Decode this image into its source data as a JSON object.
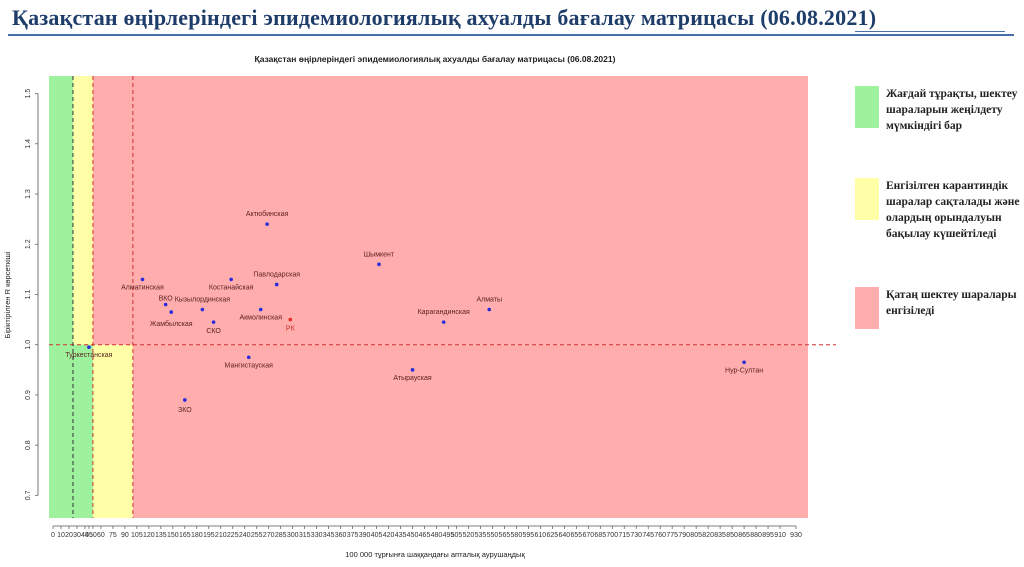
{
  "page": {
    "title": "Қазақстан өңірлеріндегі эпидемиологиялық ахуалды бағалау матрицасы  (06.08.2021)"
  },
  "legend": [
    {
      "color": "#9ef29e",
      "text": "Жағдай тұрақты, шектеу шараларын жеңілдету мүмкіндігі бар"
    },
    {
      "color": "#ffffa8",
      "text": "Енгізілген карантиндік шаралар сақталады және олардың орындалуын бақылау күшейтіледі"
    },
    {
      "color": "#ffadad",
      "text": "Қатаң шектеу шаралары енгізіледі"
    }
  ],
  "chart_data": {
    "type": "scatter",
    "title": "Қазақстан өңірлеріндегі эпидемиологиялық ахуалды бағалау матрицасы  (06.08.2021)",
    "xlabel": "100 000 тұрғынға шаққандағы апталық аурушаңдық",
    "ylabel": "Біріктірілген R көрсеткіші",
    "xlim": [
      -5,
      945
    ],
    "ylim": [
      0.655,
      1.535
    ],
    "x_ticks": [
      0,
      10,
      20,
      30,
      40,
      45,
      50,
      60,
      75,
      90,
      105,
      120,
      135,
      150,
      165,
      180,
      195,
      210,
      225,
      240,
      255,
      270,
      285,
      300,
      315,
      330,
      345,
      360,
      375,
      390,
      405,
      420,
      435,
      450,
      465,
      480,
      495,
      505,
      520,
      535,
      550,
      565,
      580,
      595,
      610,
      625,
      640,
      655,
      670,
      685,
      700,
      715,
      730,
      745,
      760,
      775,
      790,
      805,
      820,
      835,
      850,
      865,
      880,
      895,
      910,
      930
    ],
    "x_tick_labels": [
      "0",
      "10",
      "20",
      "30",
      "40",
      "45",
      "50",
      "60",
      "75",
      "90",
      "105",
      "120",
      "135",
      "150",
      "165",
      "180",
      "195",
      "210",
      "225",
      "240",
      "255",
      "270",
      "285",
      "300",
      "315",
      "330",
      "345",
      "360",
      "375",
      "390",
      "405",
      "420",
      "435",
      "450",
      "465",
      "480",
      "495",
      "505",
      "520",
      "535",
      "550",
      "565",
      "580",
      "595",
      "610",
      "625",
      "640",
      "655",
      "670",
      "685",
      "700",
      "715",
      "730",
      "745",
      "760",
      "775",
      "790",
      "805",
      "820",
      "835",
      "850",
      "865",
      "880",
      "895",
      "910",
      "930"
    ],
    "y_ticks": [
      0.7,
      0.8,
      0.9,
      1.0,
      1.1,
      1.2,
      1.3,
      1.4,
      1.5
    ],
    "y_tick_labels": [
      "0.7",
      "0.8",
      "0.9",
      "1.0",
      "1.1",
      "1.2",
      "1.3",
      "1.4",
      "1.5"
    ],
    "zones": [
      {
        "color": "#9ef29e",
        "x0": -5,
        "x1": 50,
        "y0": 0.655,
        "y1": 1.535
      },
      {
        "color": "#ffffa8",
        "x0": 25,
        "x1": 50,
        "y0": 1.0,
        "y1": 1.535
      },
      {
        "color": "#ffffa8",
        "x0": 50,
        "x1": 100,
        "y0": 0.655,
        "y1": 1.0
      },
      {
        "color": "#ffadad",
        "x0": 50,
        "x1": 945,
        "y0": 1.0,
        "y1": 1.535
      },
      {
        "color": "#ffadad",
        "x0": 100,
        "x1": 945,
        "y0": 0.655,
        "y1": 1.0
      }
    ],
    "reference_lines": [
      {
        "orientation": "horizontal",
        "value": 1.0,
        "color": "#d03030"
      },
      {
        "orientation": "vertical",
        "value": 25,
        "color": "#333333"
      },
      {
        "orientation": "vertical",
        "value": 50,
        "color": "#d03030"
      },
      {
        "orientation": "vertical",
        "value": 100,
        "color": "#d03030"
      }
    ],
    "points": [
      {
        "label": "Актюбинская",
        "x": 268,
        "y": 1.24,
        "color": "#2a2adc",
        "anchor": "middle",
        "dx": 0,
        "dy": -8
      },
      {
        "label": "Шымкент",
        "x": 408,
        "y": 1.16,
        "color": "#2a2adc",
        "anchor": "middle",
        "dx": 0,
        "dy": -8
      },
      {
        "label": "Алматинская",
        "x": 112,
        "y": 1.13,
        "color": "#2a2adc",
        "anchor": "middle",
        "dx": 0,
        "dy": 10
      },
      {
        "label": "Костанайская",
        "x": 223,
        "y": 1.13,
        "color": "#2a2adc",
        "anchor": "middle",
        "dx": 0,
        "dy": 10
      },
      {
        "label": "Павлодарская",
        "x": 280,
        "y": 1.12,
        "color": "#2a2adc",
        "anchor": "middle",
        "dx": 0,
        "dy": -8
      },
      {
        "label": "ВКО",
        "x": 141,
        "y": 1.08,
        "color": "#2a2adc",
        "anchor": "middle",
        "dx": 0,
        "dy": -4
      },
      {
        "label": "Жамбылская",
        "x": 148,
        "y": 1.065,
        "color": "#2a2adc",
        "anchor": "middle",
        "dx": 0,
        "dy": 14
      },
      {
        "label": "Кызылординская",
        "x": 187,
        "y": 1.07,
        "color": "#2a2adc",
        "anchor": "middle",
        "dx": 0,
        "dy": -8
      },
      {
        "label": "Акмолинская",
        "x": 260,
        "y": 1.07,
        "color": "#2a2adc",
        "anchor": "middle",
        "dx": 0,
        "dy": 10
      },
      {
        "label": "СКО",
        "x": 201,
        "y": 1.045,
        "color": "#2a2adc",
        "anchor": "middle",
        "dx": 0,
        "dy": 11
      },
      {
        "label": "РК",
        "x": 297,
        "y": 1.05,
        "color": "#e03020",
        "anchor": "middle",
        "dx": 0,
        "dy": 11
      },
      {
        "label": "Карагандинская",
        "x": 489,
        "y": 1.045,
        "color": "#2a2adc",
        "anchor": "middle",
        "dx": 0,
        "dy": -8
      },
      {
        "label": "Алматы",
        "x": 546,
        "y": 1.07,
        "color": "#2a2adc",
        "anchor": "middle",
        "dx": 0,
        "dy": -8
      },
      {
        "label": "Туркестанская",
        "x": 45,
        "y": 0.995,
        "color": "#2a2adc",
        "anchor": "middle",
        "dx": 0,
        "dy": 10
      },
      {
        "label": "Мангистауская",
        "x": 245,
        "y": 0.975,
        "color": "#2a2adc",
        "anchor": "middle",
        "dx": 0,
        "dy": 10
      },
      {
        "label": "Атырауская",
        "x": 450,
        "y": 0.95,
        "color": "#2a2adc",
        "anchor": "middle",
        "dx": 0,
        "dy": 10
      },
      {
        "label": "Нур-Султан",
        "x": 865,
        "y": 0.965,
        "color": "#2a2adc",
        "anchor": "middle",
        "dx": 0,
        "dy": 10
      },
      {
        "label": "ЗКО",
        "x": 165,
        "y": 0.89,
        "color": "#2a2adc",
        "anchor": "middle",
        "dx": 0,
        "dy": 12
      }
    ]
  }
}
